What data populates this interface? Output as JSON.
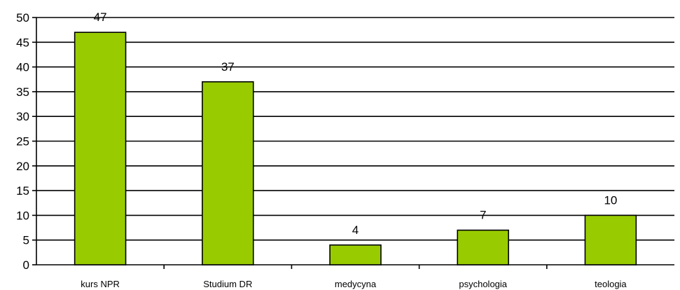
{
  "chart_data": {
    "type": "bar",
    "categories": [
      "kurs NPR",
      "Studium DR",
      "medycyna",
      "psychologia",
      "teologia"
    ],
    "values": [
      47,
      37,
      4,
      7,
      10
    ],
    "title": "",
    "xlabel": "",
    "ylabel": "",
    "ylim": [
      0,
      50
    ],
    "yticks": [
      0,
      5,
      10,
      15,
      20,
      25,
      30,
      35,
      40,
      45,
      50
    ],
    "grid": true,
    "legend": "none",
    "data_labels": true,
    "colors": {
      "bar_fill": "#99cc00",
      "bar_stroke": "#000000",
      "grid": "#000000",
      "axis": "#000000"
    }
  }
}
